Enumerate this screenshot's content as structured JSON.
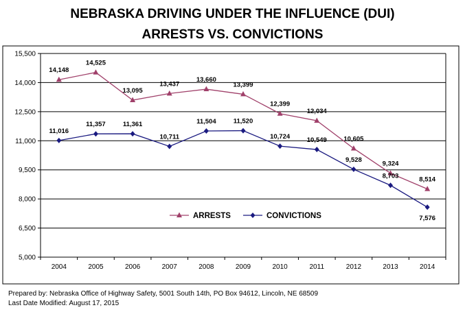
{
  "title_line1": "NEBRASKA DRIVING UNDER THE INFLUENCE (DUI)",
  "title_line2": "ARRESTS VS. CONVICTIONS",
  "footer_line1": "Prepared by: Nebraska Office of Highway Safety, 5001 South 14th, PO Box 94612, Lincoln, NE  68509",
  "footer_line2": "Last Date Modified: August 17, 2015",
  "chart_data": {
    "type": "line",
    "title": "NEBRASKA DRIVING UNDER THE INFLUENCE (DUI) ARRESTS VS. CONVICTIONS",
    "xlabel": "",
    "ylabel": "",
    "categories": [
      "2004",
      "2005",
      "2006",
      "2007",
      "2008",
      "2009",
      "2010",
      "2011",
      "2012",
      "2013",
      "2014"
    ],
    "ylim": [
      5000,
      15500
    ],
    "yticks": [
      5000,
      6500,
      8000,
      9500,
      11000,
      12500,
      14000,
      15500
    ],
    "ytick_labels": [
      "5,000",
      "6,500",
      "8,000",
      "9,500",
      "11,000",
      "12,500",
      "14,000",
      "15,500"
    ],
    "grid": "horizontal",
    "legend_position": "lower-left",
    "series": [
      {
        "name": "ARRESTS",
        "color": "#a0406a",
        "marker": "triangle",
        "values": [
          14148,
          14525,
          13095,
          13437,
          13660,
          13399,
          12399,
          12034,
          10605,
          9324,
          8514
        ],
        "labels": [
          "14,148",
          "14,525",
          "13,095",
          "13,437",
          "13,660",
          "13,399",
          "12,399",
          "12,034",
          "10,605",
          "9,324",
          "8,514"
        ]
      },
      {
        "name": "CONVICTIONS",
        "color": "#1a1a80",
        "marker": "diamond",
        "values": [
          11016,
          11357,
          11361,
          10711,
          11504,
          11520,
          10724,
          10549,
          9528,
          8703,
          7576
        ],
        "labels": [
          "11,016",
          "11,357",
          "11,361",
          "10,711",
          "11,504",
          "11,520",
          "10,724",
          "10,549",
          "9,528",
          "8,703",
          "7,576"
        ]
      }
    ]
  }
}
